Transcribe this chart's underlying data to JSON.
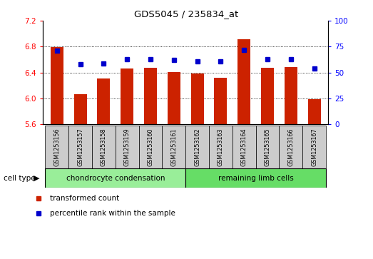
{
  "title": "GDS5045 / 235834_at",
  "samples": [
    "GSM1253156",
    "GSM1253157",
    "GSM1253158",
    "GSM1253159",
    "GSM1253160",
    "GSM1253161",
    "GSM1253162",
    "GSM1253163",
    "GSM1253164",
    "GSM1253165",
    "GSM1253166",
    "GSM1253167"
  ],
  "bar_values": [
    6.79,
    6.07,
    6.31,
    6.46,
    6.47,
    6.41,
    6.39,
    6.32,
    6.91,
    6.47,
    6.48,
    5.99
  ],
  "percentile_values": [
    71,
    58,
    59,
    63,
    63,
    62,
    61,
    61,
    72,
    63,
    63,
    54
  ],
  "bar_color": "#cc2200",
  "dot_color": "#0000cc",
  "ylim_left": [
    5.6,
    7.2
  ],
  "ylim_right": [
    0,
    100
  ],
  "yticks_left": [
    5.6,
    6.0,
    6.4,
    6.8,
    7.2
  ],
  "yticks_right": [
    0,
    25,
    50,
    75,
    100
  ],
  "grid_values": [
    6.0,
    6.4,
    6.8
  ],
  "cell_type_groups": [
    {
      "label": "chondrocyte condensation",
      "start": 0,
      "end": 5,
      "color": "#99ee99"
    },
    {
      "label": "remaining limb cells",
      "start": 6,
      "end": 11,
      "color": "#66dd66"
    }
  ],
  "cell_type_label": "cell type",
  "legend_items": [
    {
      "label": "transformed count",
      "color": "#cc2200"
    },
    {
      "label": "percentile rank within the sample",
      "color": "#0000cc"
    }
  ],
  "bar_width": 0.55,
  "background_color": "#ffffff",
  "sample_box_color": "#cccccc",
  "n_samples": 12
}
